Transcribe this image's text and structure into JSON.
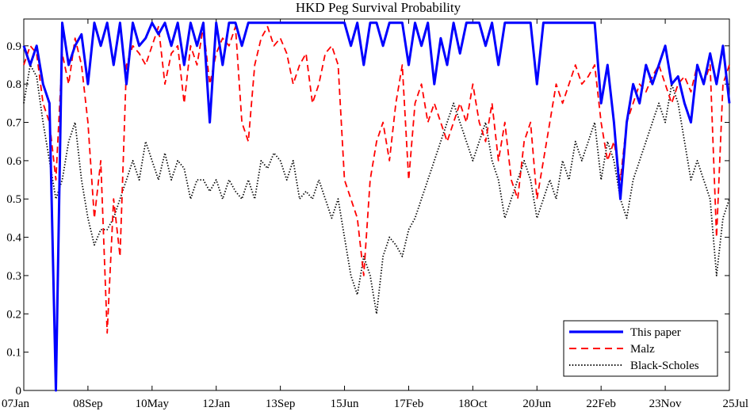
{
  "colors": {
    "this_paper": "#0000ff",
    "malz": "#ff0000",
    "black_scholes": "#000000"
  },
  "chart_data": {
    "type": "line",
    "title": "HKD Peg Survival Probability",
    "xlabel": "",
    "ylabel": "",
    "ylim": [
      0,
      0.97
    ],
    "grid": false,
    "legend_position": "bottom-right",
    "x_tick_labels": [
      "07Jan",
      "08Sep",
      "10May",
      "12Jan",
      "13Sep",
      "15Jun",
      "17Feb",
      "18Oct",
      "20Jun",
      "22Feb",
      "23Nov",
      "25Jul"
    ],
    "y_ticks": [
      0,
      0.1,
      0.2,
      0.3,
      0.4,
      0.5,
      0.6,
      0.7,
      0.8,
      0.9
    ],
    "y_tick_labels": [
      "0",
      "0.1",
      "0.2",
      "0.3",
      "0.4",
      "0.5",
      "0.6",
      "0.7",
      "0.8",
      "0.9"
    ],
    "x": [
      "07Jan",
      "07Mar",
      "07May",
      "07Jul",
      "07Sep",
      "07Nov",
      "08Jan",
      "08Mar",
      "08May",
      "08Jul",
      "08Sep",
      "08Nov",
      "09Jan",
      "09Mar",
      "09May",
      "09Jul",
      "09Sep",
      "09Nov",
      "10Jan",
      "10Mar",
      "10May",
      "10Jul",
      "10Sep",
      "10Nov",
      "11Jan",
      "11Mar",
      "11May",
      "11Jul",
      "11Sep",
      "11Nov",
      "12Jan",
      "12Mar",
      "12May",
      "12Jul",
      "12Sep",
      "12Nov",
      "13Jan",
      "13Mar",
      "13May",
      "13Jul",
      "13Sep",
      "13Nov",
      "14Jan",
      "14Mar",
      "14May",
      "14Jul",
      "14Sep",
      "14Nov",
      "15Jan",
      "15Mar",
      "15Jun",
      "15Aug",
      "15Oct",
      "15Dec",
      "16Feb",
      "16Apr",
      "16Jun",
      "16Aug",
      "16Oct",
      "16Dec",
      "17Feb",
      "17Apr",
      "17Jun",
      "17Aug",
      "17Oct",
      "17Dec",
      "18Feb",
      "18Apr",
      "18Jun",
      "18Aug",
      "18Oct",
      "18Dec",
      "19Feb",
      "19Apr",
      "19Jun",
      "19Aug",
      "19Oct",
      "19Dec",
      "20Feb",
      "20Apr",
      "20Jun",
      "20Aug",
      "20Oct",
      "20Dec",
      "21Feb",
      "21Apr",
      "21Jun",
      "21Aug",
      "21Oct",
      "21Dec",
      "22Feb",
      "22Apr",
      "22Jun",
      "22Aug",
      "22Oct",
      "22Dec",
      "23Feb",
      "23Apr",
      "23Jun",
      "23Aug",
      "23Nov",
      "24Jan",
      "24Mar",
      "24May",
      "24Jul",
      "24Sep",
      "24Nov",
      "25Jan",
      "25Mar",
      "25May",
      "25Jul"
    ],
    "series": [
      {
        "name": "This paper",
        "style": "solid",
        "color": "#0000ff",
        "values": [
          0.9,
          0.85,
          0.9,
          0.8,
          0.75,
          0.0,
          0.96,
          0.85,
          0.9,
          0.93,
          0.8,
          0.96,
          0.9,
          0.96,
          0.85,
          0.96,
          0.8,
          0.96,
          0.9,
          0.92,
          0.96,
          0.93,
          0.96,
          0.9,
          0.96,
          0.85,
          0.96,
          0.9,
          0.96,
          0.7,
          0.96,
          0.85,
          0.96,
          0.96,
          0.9,
          0.96,
          0.96,
          0.96,
          0.96,
          0.96,
          0.96,
          0.96,
          0.96,
          0.96,
          0.96,
          0.96,
          0.96,
          0.96,
          0.96,
          0.96,
          0.96,
          0.9,
          0.96,
          0.85,
          0.96,
          0.96,
          0.9,
          0.96,
          0.96,
          0.96,
          0.85,
          0.96,
          0.9,
          0.96,
          0.8,
          0.92,
          0.85,
          0.96,
          0.88,
          0.96,
          0.96,
          0.96,
          0.9,
          0.96,
          0.85,
          0.96,
          0.96,
          0.96,
          0.96,
          0.96,
          0.8,
          0.96,
          0.96,
          0.96,
          0.96,
          0.96,
          0.96,
          0.96,
          0.96,
          0.96,
          0.75,
          0.85,
          0.7,
          0.5,
          0.7,
          0.8,
          0.75,
          0.85,
          0.8,
          0.85,
          0.9,
          0.8,
          0.82,
          0.75,
          0.7,
          0.85,
          0.8,
          0.88,
          0.8,
          0.9,
          0.75
        ]
      },
      {
        "name": "Malz",
        "style": "dashed",
        "color": "#ff0000",
        "values": [
          0.85,
          0.9,
          0.88,
          0.75,
          0.7,
          0.55,
          0.88,
          0.8,
          0.92,
          0.85,
          0.7,
          0.45,
          0.6,
          0.15,
          0.5,
          0.35,
          0.85,
          0.9,
          0.88,
          0.85,
          0.9,
          0.95,
          0.8,
          0.88,
          0.9,
          0.75,
          0.9,
          0.85,
          0.95,
          0.8,
          0.88,
          0.92,
          0.9,
          0.95,
          0.7,
          0.65,
          0.85,
          0.92,
          0.95,
          0.9,
          0.92,
          0.88,
          0.8,
          0.85,
          0.88,
          0.75,
          0.8,
          0.88,
          0.9,
          0.85,
          0.55,
          0.5,
          0.45,
          0.3,
          0.55,
          0.65,
          0.7,
          0.6,
          0.75,
          0.85,
          0.55,
          0.75,
          0.8,
          0.7,
          0.75,
          0.7,
          0.65,
          0.7,
          0.75,
          0.7,
          0.8,
          0.7,
          0.65,
          0.75,
          0.6,
          0.7,
          0.55,
          0.5,
          0.65,
          0.7,
          0.5,
          0.6,
          0.7,
          0.8,
          0.75,
          0.8,
          0.85,
          0.8,
          0.82,
          0.85,
          0.7,
          0.6,
          0.65,
          0.55,
          0.7,
          0.75,
          0.8,
          0.78,
          0.82,
          0.85,
          0.8,
          0.75,
          0.8,
          0.82,
          0.78,
          0.85,
          0.8,
          0.85,
          0.4,
          0.8,
          0.85
        ]
      },
      {
        "name": "Black-Scholes",
        "style": "dotted",
        "color": "#000000",
        "values": [
          0.75,
          0.85,
          0.82,
          0.7,
          0.6,
          0.5,
          0.55,
          0.65,
          0.7,
          0.55,
          0.45,
          0.38,
          0.42,
          0.42,
          0.45,
          0.5,
          0.55,
          0.6,
          0.55,
          0.65,
          0.6,
          0.55,
          0.62,
          0.55,
          0.6,
          0.58,
          0.5,
          0.55,
          0.55,
          0.52,
          0.55,
          0.5,
          0.55,
          0.52,
          0.5,
          0.55,
          0.5,
          0.6,
          0.58,
          0.62,
          0.6,
          0.55,
          0.6,
          0.5,
          0.52,
          0.5,
          0.55,
          0.5,
          0.45,
          0.5,
          0.4,
          0.3,
          0.25,
          0.35,
          0.3,
          0.2,
          0.35,
          0.4,
          0.38,
          0.35,
          0.42,
          0.45,
          0.5,
          0.55,
          0.6,
          0.65,
          0.7,
          0.75,
          0.7,
          0.65,
          0.6,
          0.65,
          0.7,
          0.6,
          0.55,
          0.45,
          0.5,
          0.55,
          0.6,
          0.55,
          0.45,
          0.5,
          0.55,
          0.5,
          0.6,
          0.55,
          0.65,
          0.6,
          0.65,
          0.7,
          0.55,
          0.65,
          0.6,
          0.5,
          0.45,
          0.55,
          0.6,
          0.65,
          0.7,
          0.75,
          0.7,
          0.8,
          0.75,
          0.65,
          0.55,
          0.6,
          0.55,
          0.5,
          0.3,
          0.45,
          0.5
        ]
      }
    ]
  }
}
